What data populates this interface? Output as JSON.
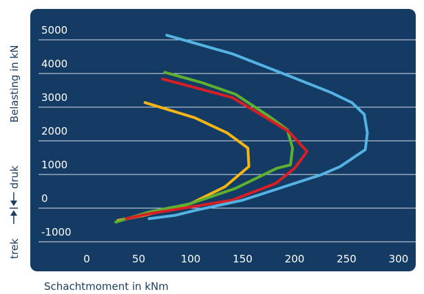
{
  "chart_data": {
    "type": "line",
    "title": "",
    "xlabel": "Schachtmoment in kNm",
    "ylabel": "Belasting in kN",
    "ylabel_lower_left": "trek",
    "ylabel_lower_right": "druk",
    "xlim": [
      0,
      300
    ],
    "ylim": [
      -1000,
      5000
    ],
    "x_ticks": [
      "0",
      "50",
      "100",
      "150",
      "200",
      "250",
      "300"
    ],
    "y_ticks": [
      "-1000",
      "0",
      "1000",
      "2000",
      "3000",
      "4000",
      "5000"
    ],
    "grid": true,
    "legend": "none",
    "colors": {
      "panel": "#143b63",
      "grid": "#ffffff",
      "axis_text": "#1b3d63",
      "tick_text": "#ffffff"
    },
    "series": [
      {
        "color": "#f6b514",
        "points": [
          [
            56,
            2850
          ],
          [
            104,
            2400
          ],
          [
            135,
            1950
          ],
          [
            155,
            1500
          ],
          [
            156,
            950
          ],
          [
            133,
            350
          ],
          [
            100,
            -150
          ],
          [
            55,
            -500
          ],
          [
            30,
            -650
          ]
        ]
      },
      {
        "color": "#5fb030",
        "points": [
          [
            75,
            3750
          ],
          [
            110,
            3450
          ],
          [
            143,
            3100
          ],
          [
            175,
            2450
          ],
          [
            193,
            2050
          ],
          [
            198,
            1500
          ],
          [
            196,
            1000
          ],
          [
            183,
            900
          ],
          [
            143,
            300
          ],
          [
            100,
            -150
          ],
          [
            60,
            -400
          ],
          [
            28,
            -700
          ]
        ]
      },
      {
        "color": "#d91f26",
        "points": [
          [
            73,
            3550
          ],
          [
            140,
            3000
          ],
          [
            170,
            2450
          ],
          [
            194,
            2000
          ],
          [
            212,
            1400
          ],
          [
            200,
            900
          ],
          [
            182,
            450
          ],
          [
            140,
            -50
          ],
          [
            100,
            -250
          ],
          [
            60,
            -450
          ],
          [
            38,
            -600
          ]
        ]
      },
      {
        "color": "#55b3e3",
        "points": [
          [
            77,
            4850
          ],
          [
            140,
            4300
          ],
          [
            190,
            3700
          ],
          [
            235,
            3150
          ],
          [
            255,
            2850
          ],
          [
            267,
            2500
          ],
          [
            270,
            1950
          ],
          [
            268,
            1450
          ],
          [
            244,
            950
          ],
          [
            225,
            700
          ],
          [
            195,
            400
          ],
          [
            150,
            -50
          ],
          [
            105,
            -350
          ],
          [
            85,
            -500
          ],
          [
            60,
            -600
          ]
        ]
      }
    ]
  }
}
